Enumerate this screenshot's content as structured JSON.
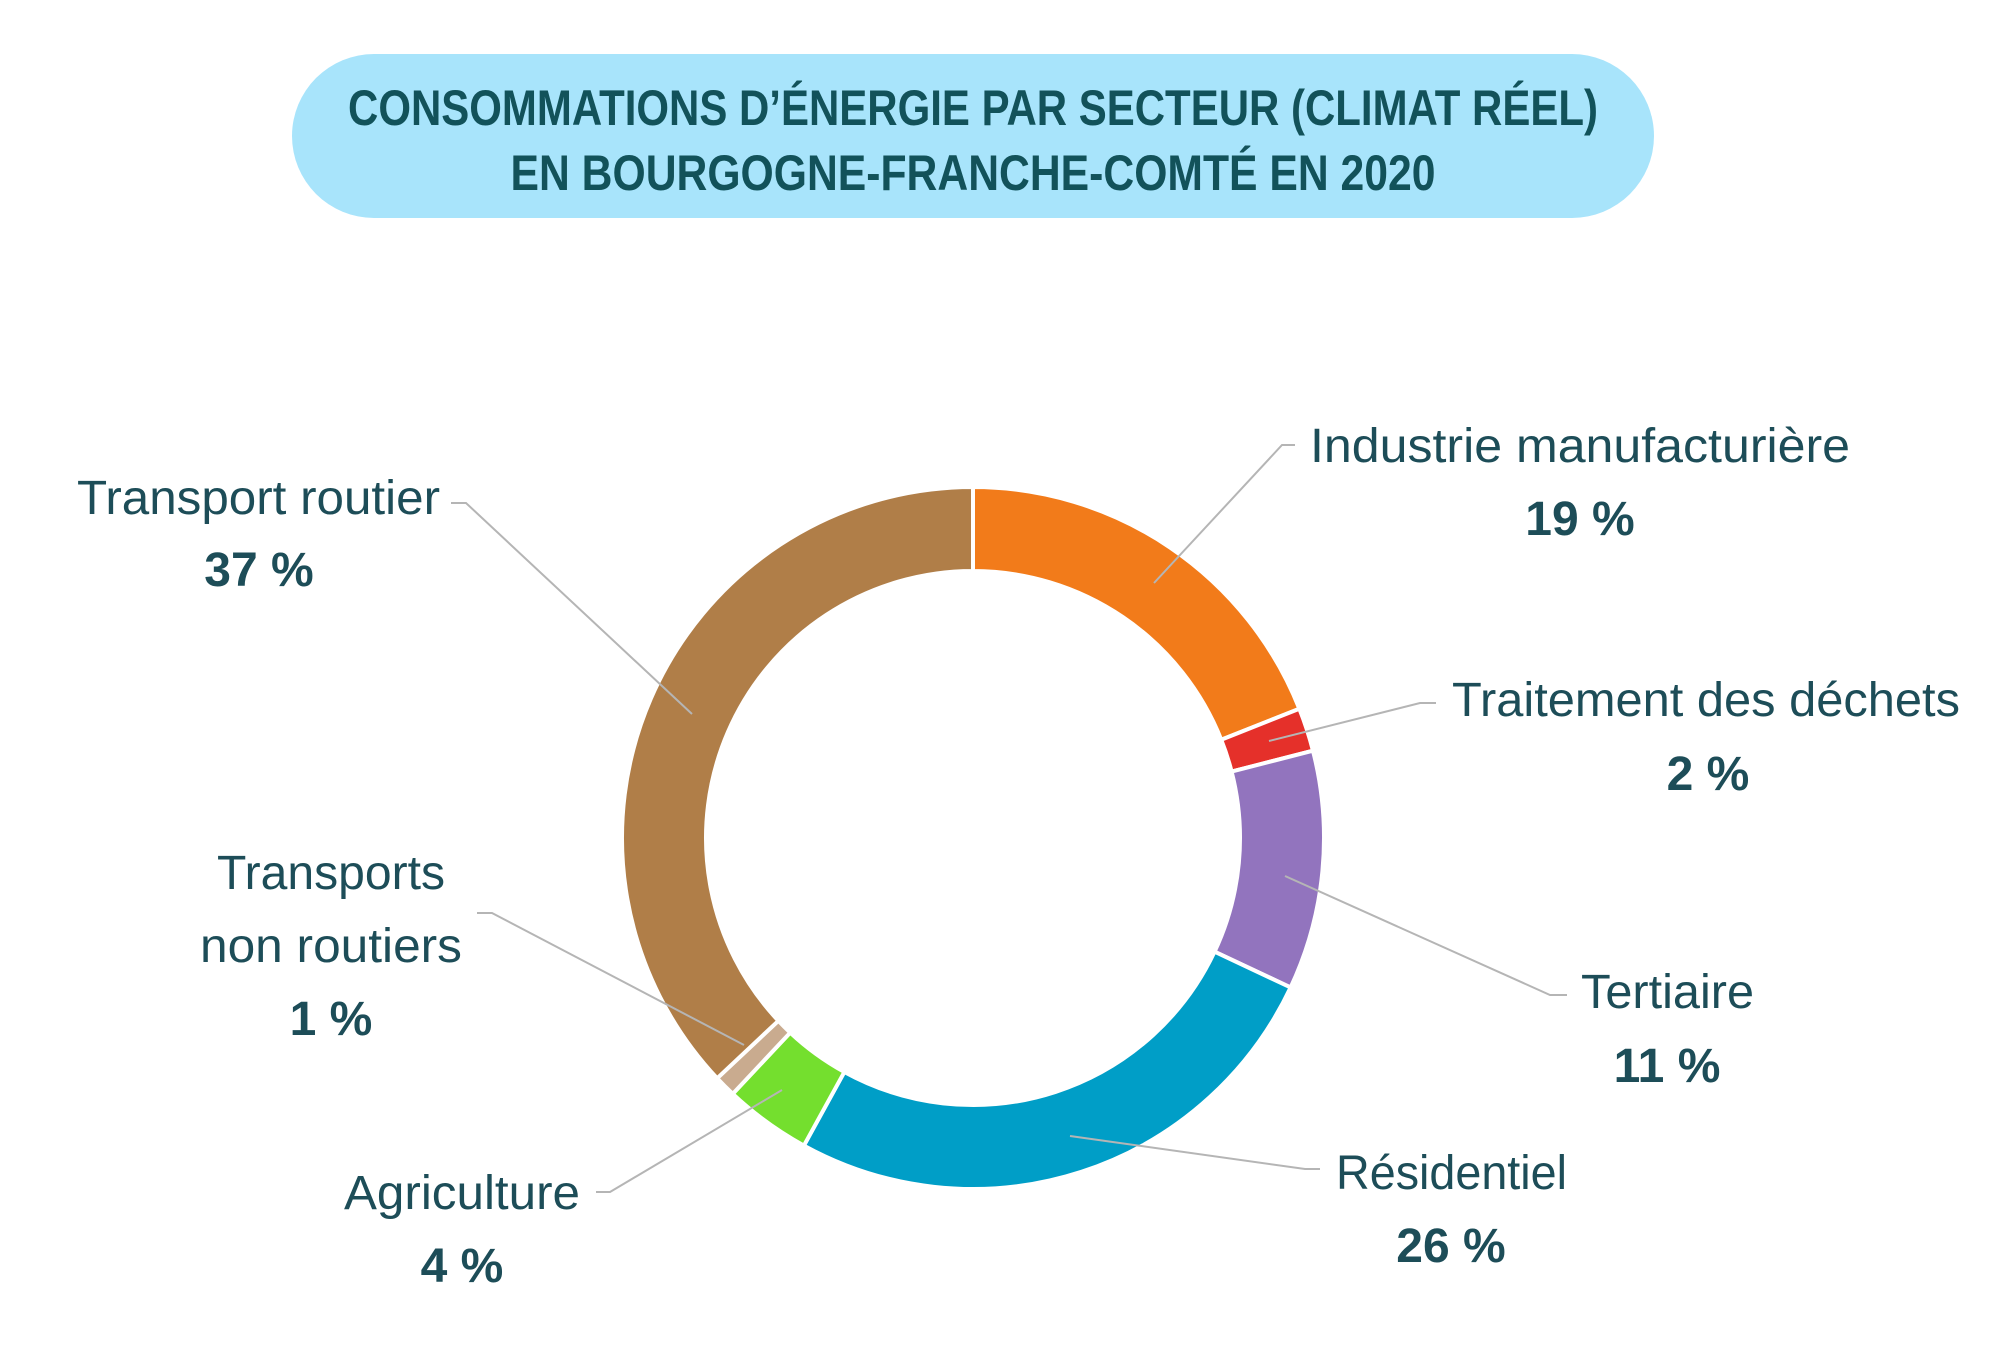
{
  "chart_data": {
    "type": "pie",
    "variant": "donut",
    "title_line1": "CONSOMMATIONS D’ÉNERGIE PAR SECTEUR (CLIMAT RÉEL)",
    "title_line2": "EN BOURGOGNE-FRANCHE-COMTÉ EN 2020",
    "unit": "%",
    "slices": [
      {
        "label": "Industrie manufacturière",
        "value": 19,
        "display": "19 %",
        "color": "#f27b1a"
      },
      {
        "label": "Traitement des déchets",
        "value": 2,
        "display": "2 %",
        "color": "#e5302a"
      },
      {
        "label": "Tertiaire",
        "value": 11,
        "display": "11 %",
        "color": "#9274be"
      },
      {
        "label": "Résidentiel",
        "value": 26,
        "display": "26 %",
        "color": "#009ec7"
      },
      {
        "label": "Agriculture",
        "value": 4,
        "display": "4 %",
        "color": "#74df2e"
      },
      {
        "label_line1": "Transports",
        "label_line2": "non routiers",
        "value": 1,
        "display": "1 %",
        "color": "#c9ab8f"
      },
      {
        "label": "Transport routier",
        "value": 37,
        "display": "37 %",
        "color": "#b07e48"
      }
    ],
    "title_bg": "#a8e4fb"
  }
}
